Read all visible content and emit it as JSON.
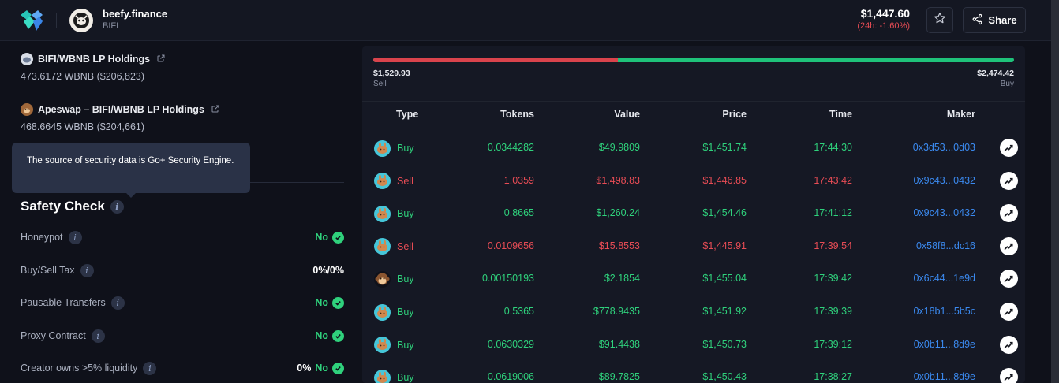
{
  "header": {
    "token_name": "beefy.finance",
    "token_symbol": "BIFI",
    "price": "$1,447.60",
    "change": "(24h: -1.60%)",
    "share_label": "Share",
    "logo_icon": "dextools-logo-icon",
    "star_icon": "star-icon",
    "share_icon": "share-icon"
  },
  "holdings": [
    {
      "title": "BIFI/WBNB LP Holdings",
      "value": "473.6172 WBNB ($206,823)",
      "icon": "pancakeswap-icon"
    },
    {
      "title": "Apeswap – BIFI/WBNB LP Holdings",
      "value": "468.6645 WBNB ($204,661)",
      "icon": "apeswap-icon"
    }
  ],
  "tooltip": {
    "text": "The source of security data is Go+ Security Engine."
  },
  "safety": {
    "title": "Safety Check",
    "rows": [
      {
        "label": "Honeypot",
        "value": "No",
        "prefix": ""
      },
      {
        "label": "Buy/Sell Tax",
        "value": "0%/0%",
        "prefix": ""
      },
      {
        "label": "Pausable Transfers",
        "value": "No",
        "prefix": ""
      },
      {
        "label": "Proxy Contract",
        "value": "No",
        "prefix": ""
      },
      {
        "label": "Creator owns >5% liquidity",
        "value": "No",
        "prefix": "0%"
      }
    ]
  },
  "pressure": {
    "sell_amount": "$1,529.93",
    "sell_label": "Sell",
    "buy_amount": "$2,474.42",
    "buy_label": "Buy",
    "sell_fraction": 0.382,
    "sell_color": "#d9434c",
    "buy_color": "#1fc27a"
  },
  "trades": {
    "columns": {
      "type": "Type",
      "tokens": "Tokens",
      "value": "Value",
      "price": "Price",
      "time": "Time",
      "maker": "Maker"
    },
    "rows": [
      {
        "type": "Buy",
        "tokens": "0.0344282",
        "value": "$49.9809",
        "price": "$1,451.74",
        "time": "17:44:30",
        "maker": "0x3d53...0d03",
        "dex": "pancakeswap"
      },
      {
        "type": "Sell",
        "tokens": "1.0359",
        "value": "$1,498.83",
        "price": "$1,446.85",
        "time": "17:43:42",
        "maker": "0x9c43...0432",
        "dex": "pancakeswap"
      },
      {
        "type": "Buy",
        "tokens": "0.8665",
        "value": "$1,260.24",
        "price": "$1,454.46",
        "time": "17:41:12",
        "maker": "0x9c43...0432",
        "dex": "pancakeswap"
      },
      {
        "type": "Sell",
        "tokens": "0.0109656",
        "value": "$15.8553",
        "price": "$1,445.91",
        "time": "17:39:54",
        "maker": "0x58f8...dc16",
        "dex": "pancakeswap"
      },
      {
        "type": "Buy",
        "tokens": "0.00150193",
        "value": "$2.1854",
        "price": "$1,455.04",
        "time": "17:39:42",
        "maker": "0x6c44...1e9d",
        "dex": "apeswap"
      },
      {
        "type": "Buy",
        "tokens": "0.5365",
        "value": "$778.9435",
        "price": "$1,451.92",
        "time": "17:39:39",
        "maker": "0x18b1...5b5c",
        "dex": "pancakeswap"
      },
      {
        "type": "Buy",
        "tokens": "0.0630329",
        "value": "$91.4438",
        "price": "$1,450.73",
        "time": "17:39:12",
        "maker": "0x0b11...8d9e",
        "dex": "pancakeswap"
      },
      {
        "type": "Buy",
        "tokens": "0.0619006",
        "value": "$89.7825",
        "price": "$1,450.43",
        "time": "17:38:27",
        "maker": "0x0b11...8d9e",
        "dex": "pancakeswap"
      }
    ]
  }
}
